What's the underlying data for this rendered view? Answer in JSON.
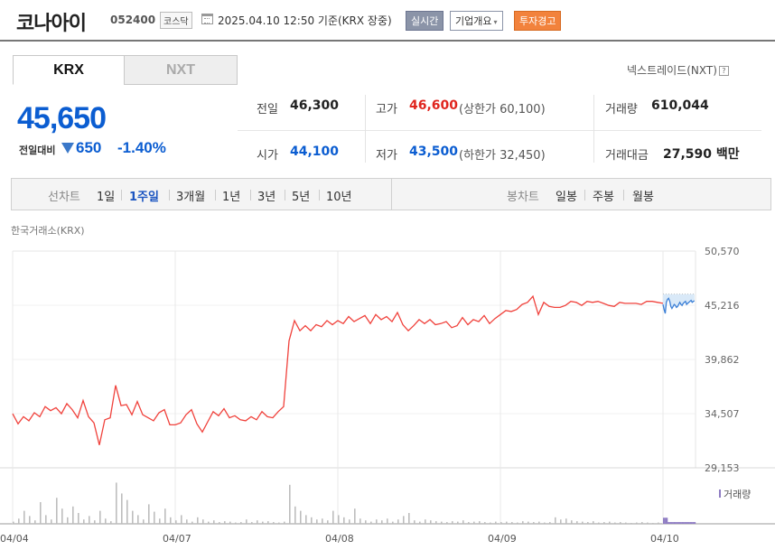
{
  "header": {
    "name": "코나아이",
    "code": "052400",
    "market_badge": "코스닥",
    "calendar_icon": "calendar-icon",
    "timestamp": "2025.04.10 12:50 기준(KRX 장중)",
    "realtime_button": "실시간",
    "company_button": "기업개요",
    "dropdown_icon": "▾",
    "warning_badge": "투자경고",
    "colors": {
      "realtime_bg": "#8b94a8",
      "warning_bg": "#f2823c"
    }
  },
  "tabs": [
    {
      "label": "KRX",
      "active": true
    },
    {
      "label": "NXT",
      "active": false
    }
  ],
  "nxt_link": {
    "label": "넥스트레이드(NXT)",
    "help_icon": "?"
  },
  "quote": {
    "price": "45,650",
    "change_label": "전일대비",
    "change_direction": "down",
    "change_value": "650",
    "change_pct": "-1.40%",
    "colors": {
      "up": "#e0251e",
      "down": "#0b5dd1"
    }
  },
  "stats": {
    "prev_close": {
      "label": "전일",
      "value": "46,300"
    },
    "open": {
      "label": "시가",
      "value": "44,100"
    },
    "high": {
      "label": "고가",
      "value": "46,600",
      "sub": "(상한가 60,100)"
    },
    "low": {
      "label": "저가",
      "value": "43,500",
      "sub": "(하한가 32,450)"
    },
    "volume": {
      "label": "거래량",
      "value": "610,044"
    },
    "turnover": {
      "label": "거래대금",
      "value": "27,590 백만"
    }
  },
  "period_bar": {
    "label": "선차트",
    "options": [
      "1일",
      "1주일",
      "3개월",
      "1년",
      "3년",
      "5년",
      "10년"
    ],
    "active": "1주일",
    "candle_label": "봉차트",
    "candle_options": [
      "일봉",
      "주봉",
      "월봉"
    ]
  },
  "chart_source": "한국거래소(KRX)",
  "chart_data": {
    "type": "line",
    "ylim": [
      29153,
      50570
    ],
    "y_ticks": [
      "50,570",
      "45,216",
      "39,862",
      "34,507",
      "29,153"
    ],
    "x_ticks": [
      "04/04",
      "04/07",
      "04/08",
      "04/09",
      "04/10"
    ],
    "volume_label": "거래량",
    "colors": {
      "past": "#f0423c",
      "today": "#3b7fd6",
      "fill": "#d9e9f8",
      "volume": "#bdbdbd",
      "volume_today": "#8e7cc3"
    },
    "previous_close_ref": 46300,
    "series": [
      {
        "x": [
          0,
          0.1,
          0.2,
          0.3,
          0.4,
          0.5,
          0.6,
          0.7,
          0.8,
          0.9,
          1.0,
          1.1,
          1.2,
          1.3,
          1.4,
          1.5,
          1.6,
          1.7,
          1.8,
          1.9,
          2.0,
          2.1,
          2.2,
          2.3,
          2.4,
          2.5,
          2.6,
          2.7,
          2.8,
          2.9,
          3.0,
          3.1,
          3.2,
          3.3,
          3.4,
          3.5,
          3.6,
          3.7,
          3.8,
          3.9,
          4.0,
          4.1,
          4.2,
          4.3,
          4.4,
          4.5,
          4.6,
          4.7,
          4.8,
          4.9,
          5.0,
          5.1,
          5.2,
          5.3,
          5.4,
          5.5,
          5.6,
          5.7,
          5.8,
          5.9,
          6.0,
          6.1,
          6.2,
          6.3,
          6.4,
          6.5,
          6.6,
          6.7,
          6.8,
          6.9,
          7.0,
          7.1,
          7.2,
          7.3,
          7.4,
          7.5,
          7.6,
          7.7,
          7.8,
          7.9,
          8.0,
          8.1,
          8.2,
          8.3,
          8.4,
          8.5,
          8.6,
          8.7,
          8.8,
          8.9,
          9.0,
          9.1,
          9.2,
          9.3,
          9.4,
          9.5,
          9.6,
          9.7,
          9.8,
          9.9,
          10.0,
          10.1,
          10.2,
          10.3,
          10.4,
          10.5,
          10.6,
          10.7,
          10.8,
          10.9,
          11.0,
          11.1,
          11.2,
          11.3,
          11.4,
          11.5,
          11.6,
          11.7,
          11.8,
          11.9,
          12.0
        ],
        "values": [
          34500,
          33500,
          34200,
          33800,
          34600,
          34200,
          35200,
          34800,
          35100,
          34500,
          35500,
          34900,
          34100,
          35800,
          34200,
          33600,
          31400,
          33900,
          34100,
          37300,
          35300,
          35400,
          34400,
          35700,
          34400,
          34100,
          33800,
          34600,
          34900,
          33400,
          33400,
          33600,
          34400,
          34900,
          33500,
          32700,
          33700,
          34700,
          34300,
          35000,
          34100,
          34300,
          33900,
          33800,
          34200,
          33900,
          34700,
          34200,
          34100,
          34700,
          35200,
          41700,
          43700,
          42700,
          43200,
          42700,
          43300,
          43100,
          43700,
          43300,
          43700,
          43400,
          44100,
          43600,
          43900,
          44200,
          43400,
          44300,
          43800,
          44100,
          43600,
          44500,
          43300,
          42700,
          43200,
          43800,
          43400,
          43800,
          43300,
          43400,
          43600,
          43000,
          43200,
          44000,
          43300,
          43800,
          43600,
          44200,
          43400,
          43900,
          44300,
          44700,
          44600,
          44800,
          45300,
          45500,
          46100,
          44300,
          45500,
          45100,
          45000,
          45000,
          45200,
          45600,
          45500,
          45200,
          45600,
          45500,
          45600,
          45400,
          45200,
          45100,
          45500,
          45400,
          45400,
          45400,
          45300,
          45600,
          45600,
          45500,
          45400
        ]
      }
    ],
    "volume_note": "relative volume per segment (0-1)",
    "volume": [
      0.05,
      0.12,
      0.3,
      0.18,
      0.08,
      0.5,
      0.2,
      0.1,
      0.6,
      0.35,
      0.15,
      0.4,
      0.25,
      0.1,
      0.18,
      0.08,
      0.3,
      0.12,
      0.06,
      0.95,
      0.7,
      0.55,
      0.3,
      0.2,
      0.1,
      0.45,
      0.28,
      0.12,
      0.35,
      0.15,
      0.08,
      0.2,
      0.1,
      0.05,
      0.15,
      0.1,
      0.05,
      0.08,
      0.04,
      0.06,
      0.05,
      0.03,
      0.04,
      0.1,
      0.04,
      0.08,
      0.05,
      0.06,
      0.04,
      0.03,
      0.05,
      0.9,
      0.4,
      0.3,
      0.2,
      0.15,
      0.1,
      0.12,
      0.08,
      0.3,
      0.2,
      0.15,
      0.1,
      0.35,
      0.12,
      0.08,
      0.05,
      0.1,
      0.08,
      0.12,
      0.05,
      0.1,
      0.18,
      0.25,
      0.08,
      0.05,
      0.1,
      0.08,
      0.06,
      0.05,
      0.04,
      0.06,
      0.05,
      0.08,
      0.04,
      0.05,
      0.06,
      0.04,
      0.03,
      0.05,
      0.04,
      0.05,
      0.04,
      0.03,
      0.06,
      0.05,
      0.04,
      0.05,
      0.03,
      0.04,
      0.15,
      0.1,
      0.12,
      0.08,
      0.06,
      0.05,
      0.04,
      0.06,
      0.03,
      0.04,
      0.05,
      0.03,
      0.04,
      0.03,
      0.02,
      0.03,
      0.04,
      0.03,
      0.02,
      0.03
    ]
  }
}
